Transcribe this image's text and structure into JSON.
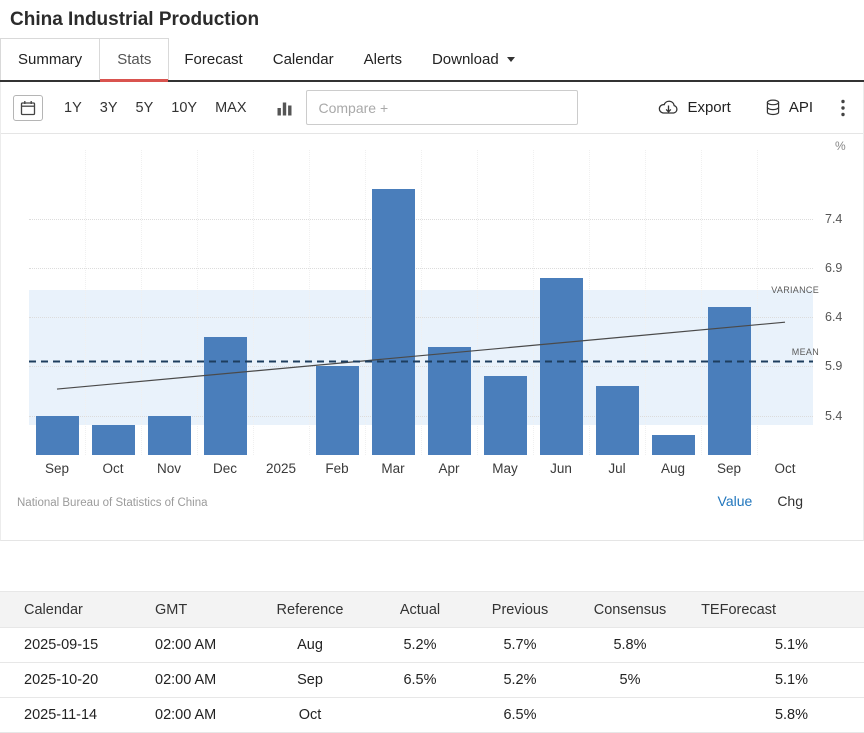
{
  "colors": {
    "accent-red": "#d9534f",
    "link-blue": "#2176bd"
  },
  "header": {
    "title": "China Industrial Production"
  },
  "tabs": [
    "Summary",
    "Stats",
    "Forecast",
    "Calendar",
    "Alerts",
    "Download"
  ],
  "toolbar": {
    "ranges": [
      "1Y",
      "3Y",
      "5Y",
      "10Y",
      "MAX"
    ],
    "compare_placeholder": "Compare +",
    "export_label": "Export",
    "api_label": "API"
  },
  "chart_data": {
    "type": "bar",
    "title": "China Industrial Production",
    "unit": "%",
    "categories": [
      "Sep",
      "Oct",
      "Nov",
      "Dec",
      "2025",
      "Feb",
      "Mar",
      "Apr",
      "May",
      "Jun",
      "Jul",
      "Aug",
      "Sep",
      "Oct"
    ],
    "values": [
      5.4,
      5.3,
      5.4,
      6.2,
      null,
      5.9,
      7.7,
      6.1,
      5.8,
      6.8,
      5.7,
      5.2,
      6.5,
      null
    ],
    "ylim": [
      5.0,
      8.1
    ],
    "yticks": [
      5.4,
      5.9,
      6.4,
      6.9,
      7.4
    ],
    "ylabel": "%",
    "xlabel": "",
    "grid": true,
    "legend": "none",
    "mean": 5.95,
    "variance_band": [
      5.3,
      6.68
    ],
    "trend": {
      "start": 5.67,
      "end": 6.35
    },
    "annotations": {
      "variance_label": "VARIANCE",
      "mean_label": "MEAN"
    },
    "bar_color": "#4a7ebb",
    "band_color": "#e9f2fb"
  },
  "chart_footer": {
    "source": "National Bureau of Statistics of China",
    "value_label": "Value",
    "chg_label": "Chg"
  },
  "table": {
    "headers": [
      "Calendar",
      "GMT",
      "Reference",
      "Actual",
      "Previous",
      "Consensus",
      "TEForecast"
    ],
    "rows": [
      [
        "2025-09-15",
        "02:00 AM",
        "Aug",
        "5.2%",
        "5.7%",
        "5.8%",
        "5.1%"
      ],
      [
        "2025-10-20",
        "02:00 AM",
        "Sep",
        "6.5%",
        "5.2%",
        "5%",
        "5.1%"
      ],
      [
        "2025-11-14",
        "02:00 AM",
        "Oct",
        "",
        "6.5%",
        "",
        "5.8%"
      ]
    ]
  }
}
